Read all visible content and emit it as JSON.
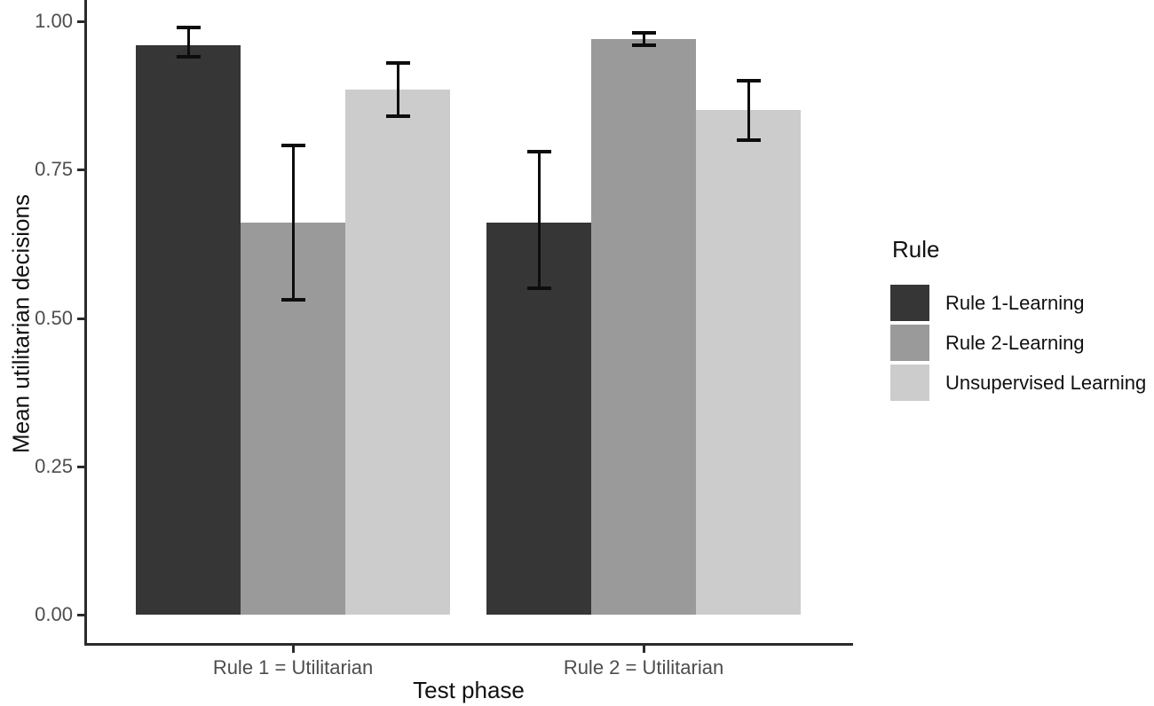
{
  "figure": {
    "background": "#ffffff",
    "axis_color": "#2b2b2b",
    "tick_label_color": "#4d4d4d",
    "title_color": "#111111",
    "error_bar_color": "#0d0d0d"
  },
  "chart_data": {
    "type": "bar",
    "title": "",
    "xlabel": "Test phase",
    "ylabel": "Mean utilitarian decisions",
    "categories": [
      "Rule 1 = Utilitarian",
      "Rule 2 = Utilitarian"
    ],
    "series": [
      {
        "name": "Rule 1-Learning",
        "color": "#363636",
        "values": [
          0.96,
          0.66
        ],
        "error_low": [
          0.94,
          0.55
        ],
        "error_high": [
          0.99,
          0.78
        ]
      },
      {
        "name": "Rule 2-Learning",
        "color": "#9a9a9a",
        "values": [
          0.66,
          0.97
        ],
        "error_low": [
          0.53,
          0.96
        ],
        "error_high": [
          0.79,
          0.98
        ]
      },
      {
        "name": "Unsupervised Learning",
        "color": "#cccccc",
        "values": [
          0.885,
          0.85
        ],
        "error_low": [
          0.84,
          0.8
        ],
        "error_high": [
          0.93,
          0.9
        ]
      }
    ],
    "ylim": [
      0.0,
      1.0
    ],
    "yticks": [
      0.0,
      0.25,
      0.5,
      0.75,
      1.0
    ],
    "ytick_labels": [
      "0.00",
      "0.25",
      "0.50",
      "0.75",
      "1.00"
    ],
    "legend_title": "Rule",
    "legend_position": "right",
    "grid": false,
    "error_bars": true,
    "bar_style": "dodged"
  }
}
